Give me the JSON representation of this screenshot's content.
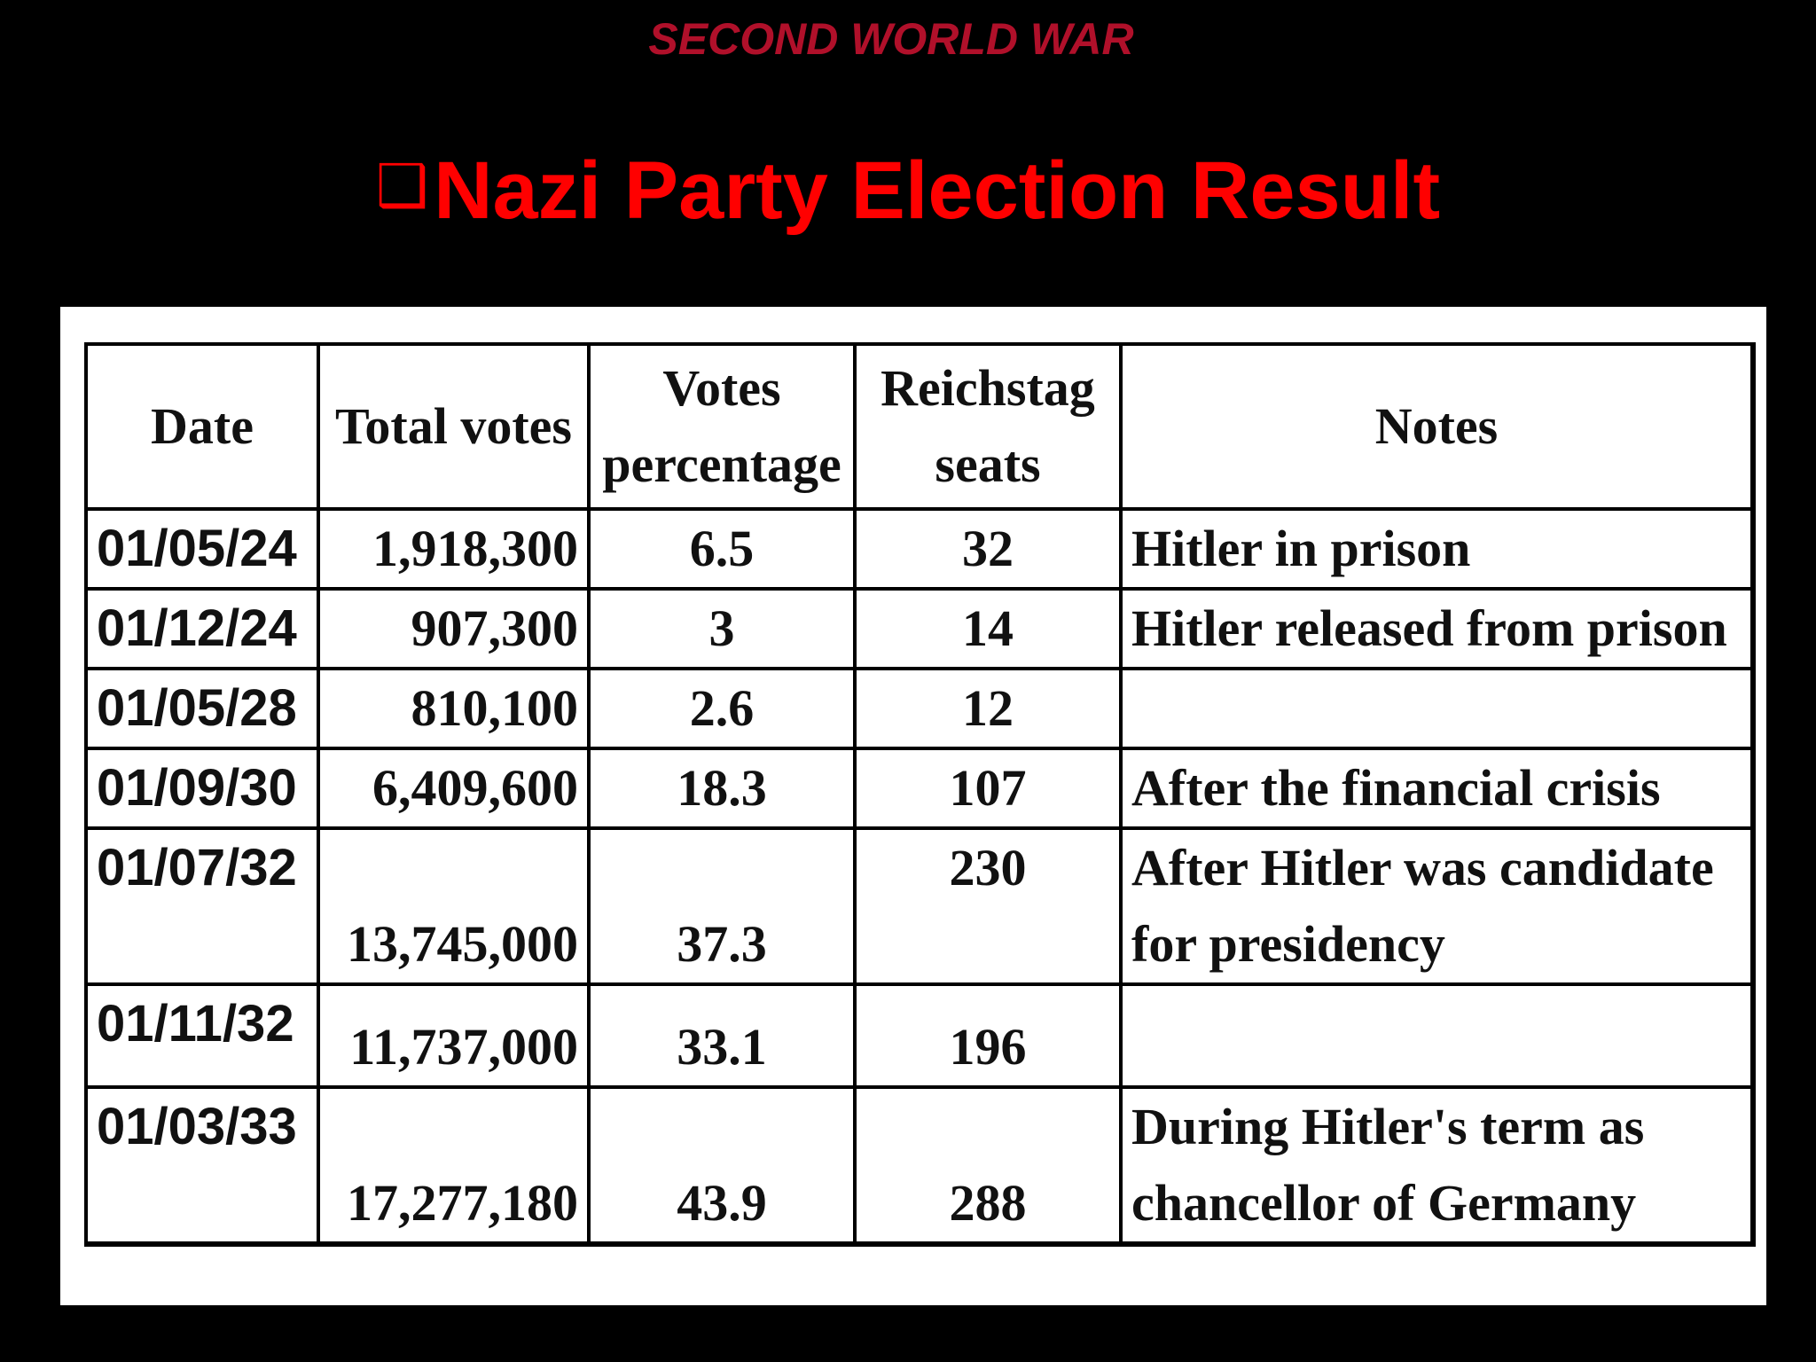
{
  "slide": {
    "subtitle": "SECOND WORLD WAR",
    "bullet": "❑",
    "title": "Nazi Party Election Result"
  },
  "table": {
    "headers": {
      "date": "Date",
      "total_votes": "Total votes",
      "votes_percentage_line1": "Votes",
      "votes_percentage_line2": "percentage",
      "reichstag_seats_line1": "Reichstag",
      "reichstag_seats_line2": "seats",
      "notes": "Notes"
    },
    "rows": [
      {
        "date": "01/05/24",
        "total_votes": "1,918,300",
        "votes_percentage": "6.5",
        "reichstag_seats": "32",
        "notes_line1": "Hitler in prison",
        "notes_line2": ""
      },
      {
        "date": "01/12/24",
        "total_votes": "907,300",
        "votes_percentage": "3",
        "reichstag_seats": "14",
        "notes_line1": "Hitler released from prison",
        "notes_line2": ""
      },
      {
        "date": "01/05/28",
        "total_votes": "810,100",
        "votes_percentage": "2.6",
        "reichstag_seats": "12",
        "notes_line1": "",
        "notes_line2": ""
      },
      {
        "date": "01/09/30",
        "total_votes": "6,409,600",
        "votes_percentage": "18.3",
        "reichstag_seats": "107",
        "notes_line1": "After the financial crisis",
        "notes_line2": ""
      },
      {
        "date": "01/07/32",
        "total_votes": "13,745,000",
        "votes_percentage": "37.3",
        "reichstag_seats": "230",
        "notes_line1": "After Hitler was candidate",
        "notes_line2": "for presidency"
      },
      {
        "date": "01/11/32",
        "total_votes": "11,737,000",
        "votes_percentage": "33.1",
        "reichstag_seats": "196",
        "notes_line1": "",
        "notes_line2": ""
      },
      {
        "date": "01/03/33",
        "total_votes": "17,277,180",
        "votes_percentage": "43.9",
        "reichstag_seats": "288",
        "notes_line1": "During Hitler's term as",
        "notes_line2": "chancellor of Germany"
      }
    ]
  }
}
